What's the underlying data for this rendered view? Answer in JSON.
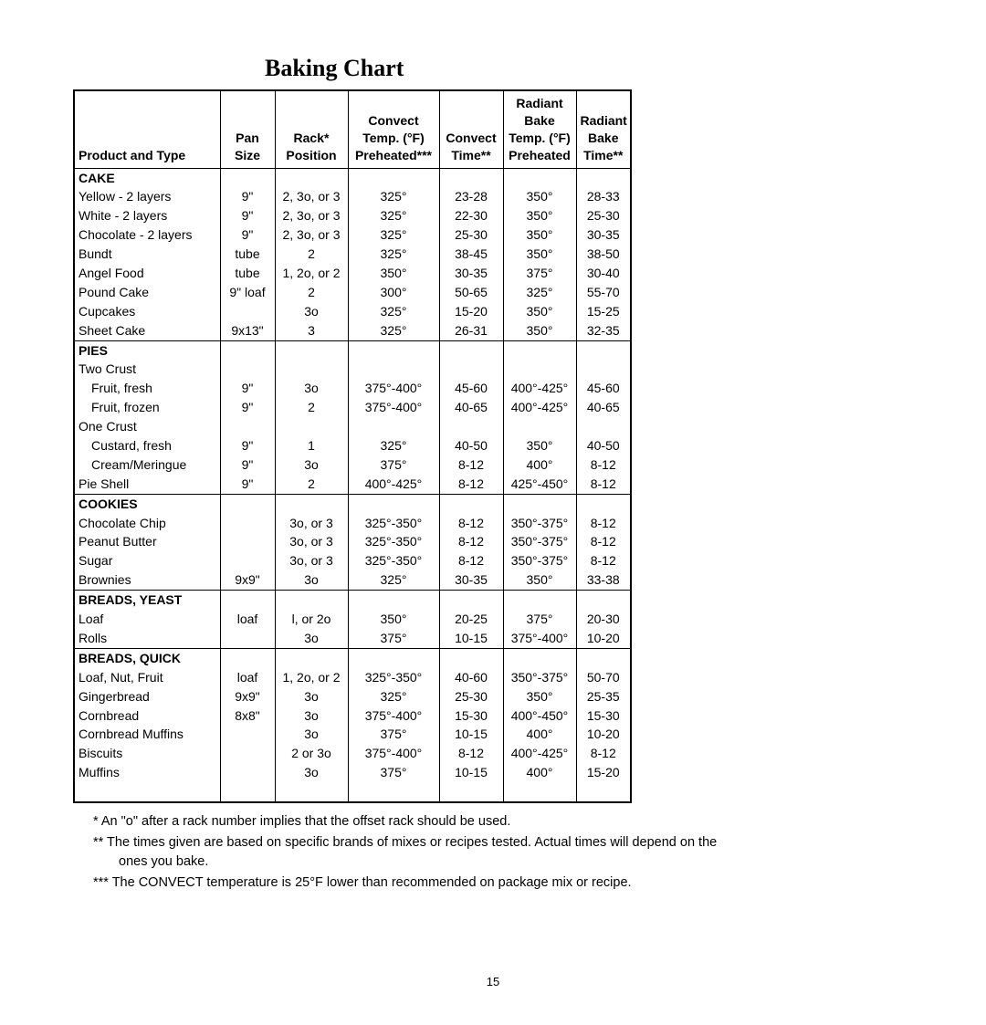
{
  "title": "Baking Chart",
  "columns": [
    "Product and Type",
    "Pan Size",
    "Rack* Position",
    "Convect Temp. (°F) Preheated***",
    "Convect Time**",
    "Radiant Bake Temp. (°F) Preheated",
    "Radiant Bake Time**"
  ],
  "sections": [
    {
      "name": "CAKE",
      "rows": [
        [
          "Yellow - 2 layers",
          "9\"",
          "2, 3o, or 3",
          "325°",
          "23-28",
          "350°",
          "28-33"
        ],
        [
          "White - 2 layers",
          "9\"",
          "2, 3o, or 3",
          "325°",
          "22-30",
          "350°",
          "25-30"
        ],
        [
          "Chocolate - 2 layers",
          "9\"",
          "2, 3o, or 3",
          "325°",
          "25-30",
          "350°",
          "30-35"
        ],
        [
          "Bundt",
          "tube",
          "2",
          "325°",
          "38-45",
          "350°",
          "38-50"
        ],
        [
          "Angel Food",
          "tube",
          "1, 2o, or 2",
          "350°",
          "30-35",
          "375°",
          "30-40"
        ],
        [
          "Pound Cake",
          "9\" loaf",
          "2",
          "300°",
          "50-65",
          "325°",
          "55-70"
        ],
        [
          "Cupcakes",
          "",
          "3o",
          "325°",
          "15-20",
          "350°",
          "15-25"
        ],
        [
          "Sheet Cake",
          "9x13\"",
          "3",
          "325°",
          "26-31",
          "350°",
          "32-35"
        ]
      ]
    },
    {
      "name": "PIES",
      "subs": [
        {
          "label": "Two Crust",
          "rows": [
            [
              "Fruit, fresh",
              "9\"",
              "3o",
              "375°-400°",
              "45-60",
              "400°-425°",
              "45-60"
            ],
            [
              "Fruit, frozen",
              "9\"",
              "2",
              "375°-400°",
              "40-65",
              "400°-425°",
              "40-65"
            ]
          ]
        },
        {
          "label": "One Crust",
          "rows": [
            [
              "Custard, fresh",
              "9\"",
              "1",
              "325°",
              "40-50",
              "350°",
              "40-50"
            ],
            [
              "Cream/Meringue",
              "9\"",
              "3o",
              "375°",
              "8-12",
              "400°",
              "8-12"
            ]
          ]
        }
      ],
      "tail": [
        [
          "Pie Shell",
          "9\"",
          "2",
          "400°-425°",
          "8-12",
          "425°-450°",
          "8-12"
        ]
      ]
    },
    {
      "name": "COOKIES",
      "rows": [
        [
          "Chocolate Chip",
          "",
          "3o, or 3",
          "325°-350°",
          "8-12",
          "350°-375°",
          "8-12"
        ],
        [
          "Peanut Butter",
          "",
          "3o, or 3",
          "325°-350°",
          "8-12",
          "350°-375°",
          "8-12"
        ],
        [
          "Sugar",
          "",
          "3o, or 3",
          "325°-350°",
          "8-12",
          "350°-375°",
          "8-12"
        ],
        [
          "Brownies",
          "9x9\"",
          "3o",
          "325°",
          "30-35",
          "350°",
          "33-38"
        ]
      ]
    },
    {
      "name": "BREADS, YEAST",
      "rows": [
        [
          "Loaf",
          "loaf",
          "l, or 2o",
          "350°",
          "20-25",
          "375°",
          "20-30"
        ],
        [
          "Rolls",
          "",
          "3o",
          "375°",
          "10-15",
          "375°-400°",
          "10-20"
        ]
      ]
    },
    {
      "name": "BREADS, QUICK",
      "rows": [
        [
          "Loaf, Nut, Fruit",
          "loaf",
          "1, 2o, or 2",
          "325°-350°",
          "40-60",
          "350°-375°",
          "50-70"
        ],
        [
          "Gingerbread",
          "9x9\"",
          "3o",
          "325°",
          "25-30",
          "350°",
          "25-35"
        ],
        [
          "Cornbread",
          "8x8\"",
          "3o",
          "375°-400°",
          "15-30",
          "400°-450°",
          "15-30"
        ],
        [
          "Cornbread Muffins",
          "",
          "3o",
          "375°",
          "10-15",
          "400°",
          "10-20"
        ],
        [
          "Biscuits",
          "",
          "2 or 3o",
          "375°-400°",
          "8-12",
          "400°-425°",
          "8-12"
        ],
        [
          "Muffins",
          "",
          "3o",
          "375°",
          "10-15",
          "400°",
          "15-20"
        ]
      ],
      "spacer_after": true
    }
  ],
  "footnotes": [
    "*  An \"o\" after a rack number implies that the offset rack should be used.",
    "**  The times given are based on specific brands of mixes or recipes tested.  Actual times will depend on the ones you bake.",
    "***  The CONVECT temperature is 25°F lower than recommended on package mix or recipe."
  ],
  "page_number": "15",
  "style": {
    "title_font": "Times New Roman bold 26pt",
    "body_font": "Arial ~14px",
    "border_color": "#000000",
    "background": "#ffffff"
  }
}
